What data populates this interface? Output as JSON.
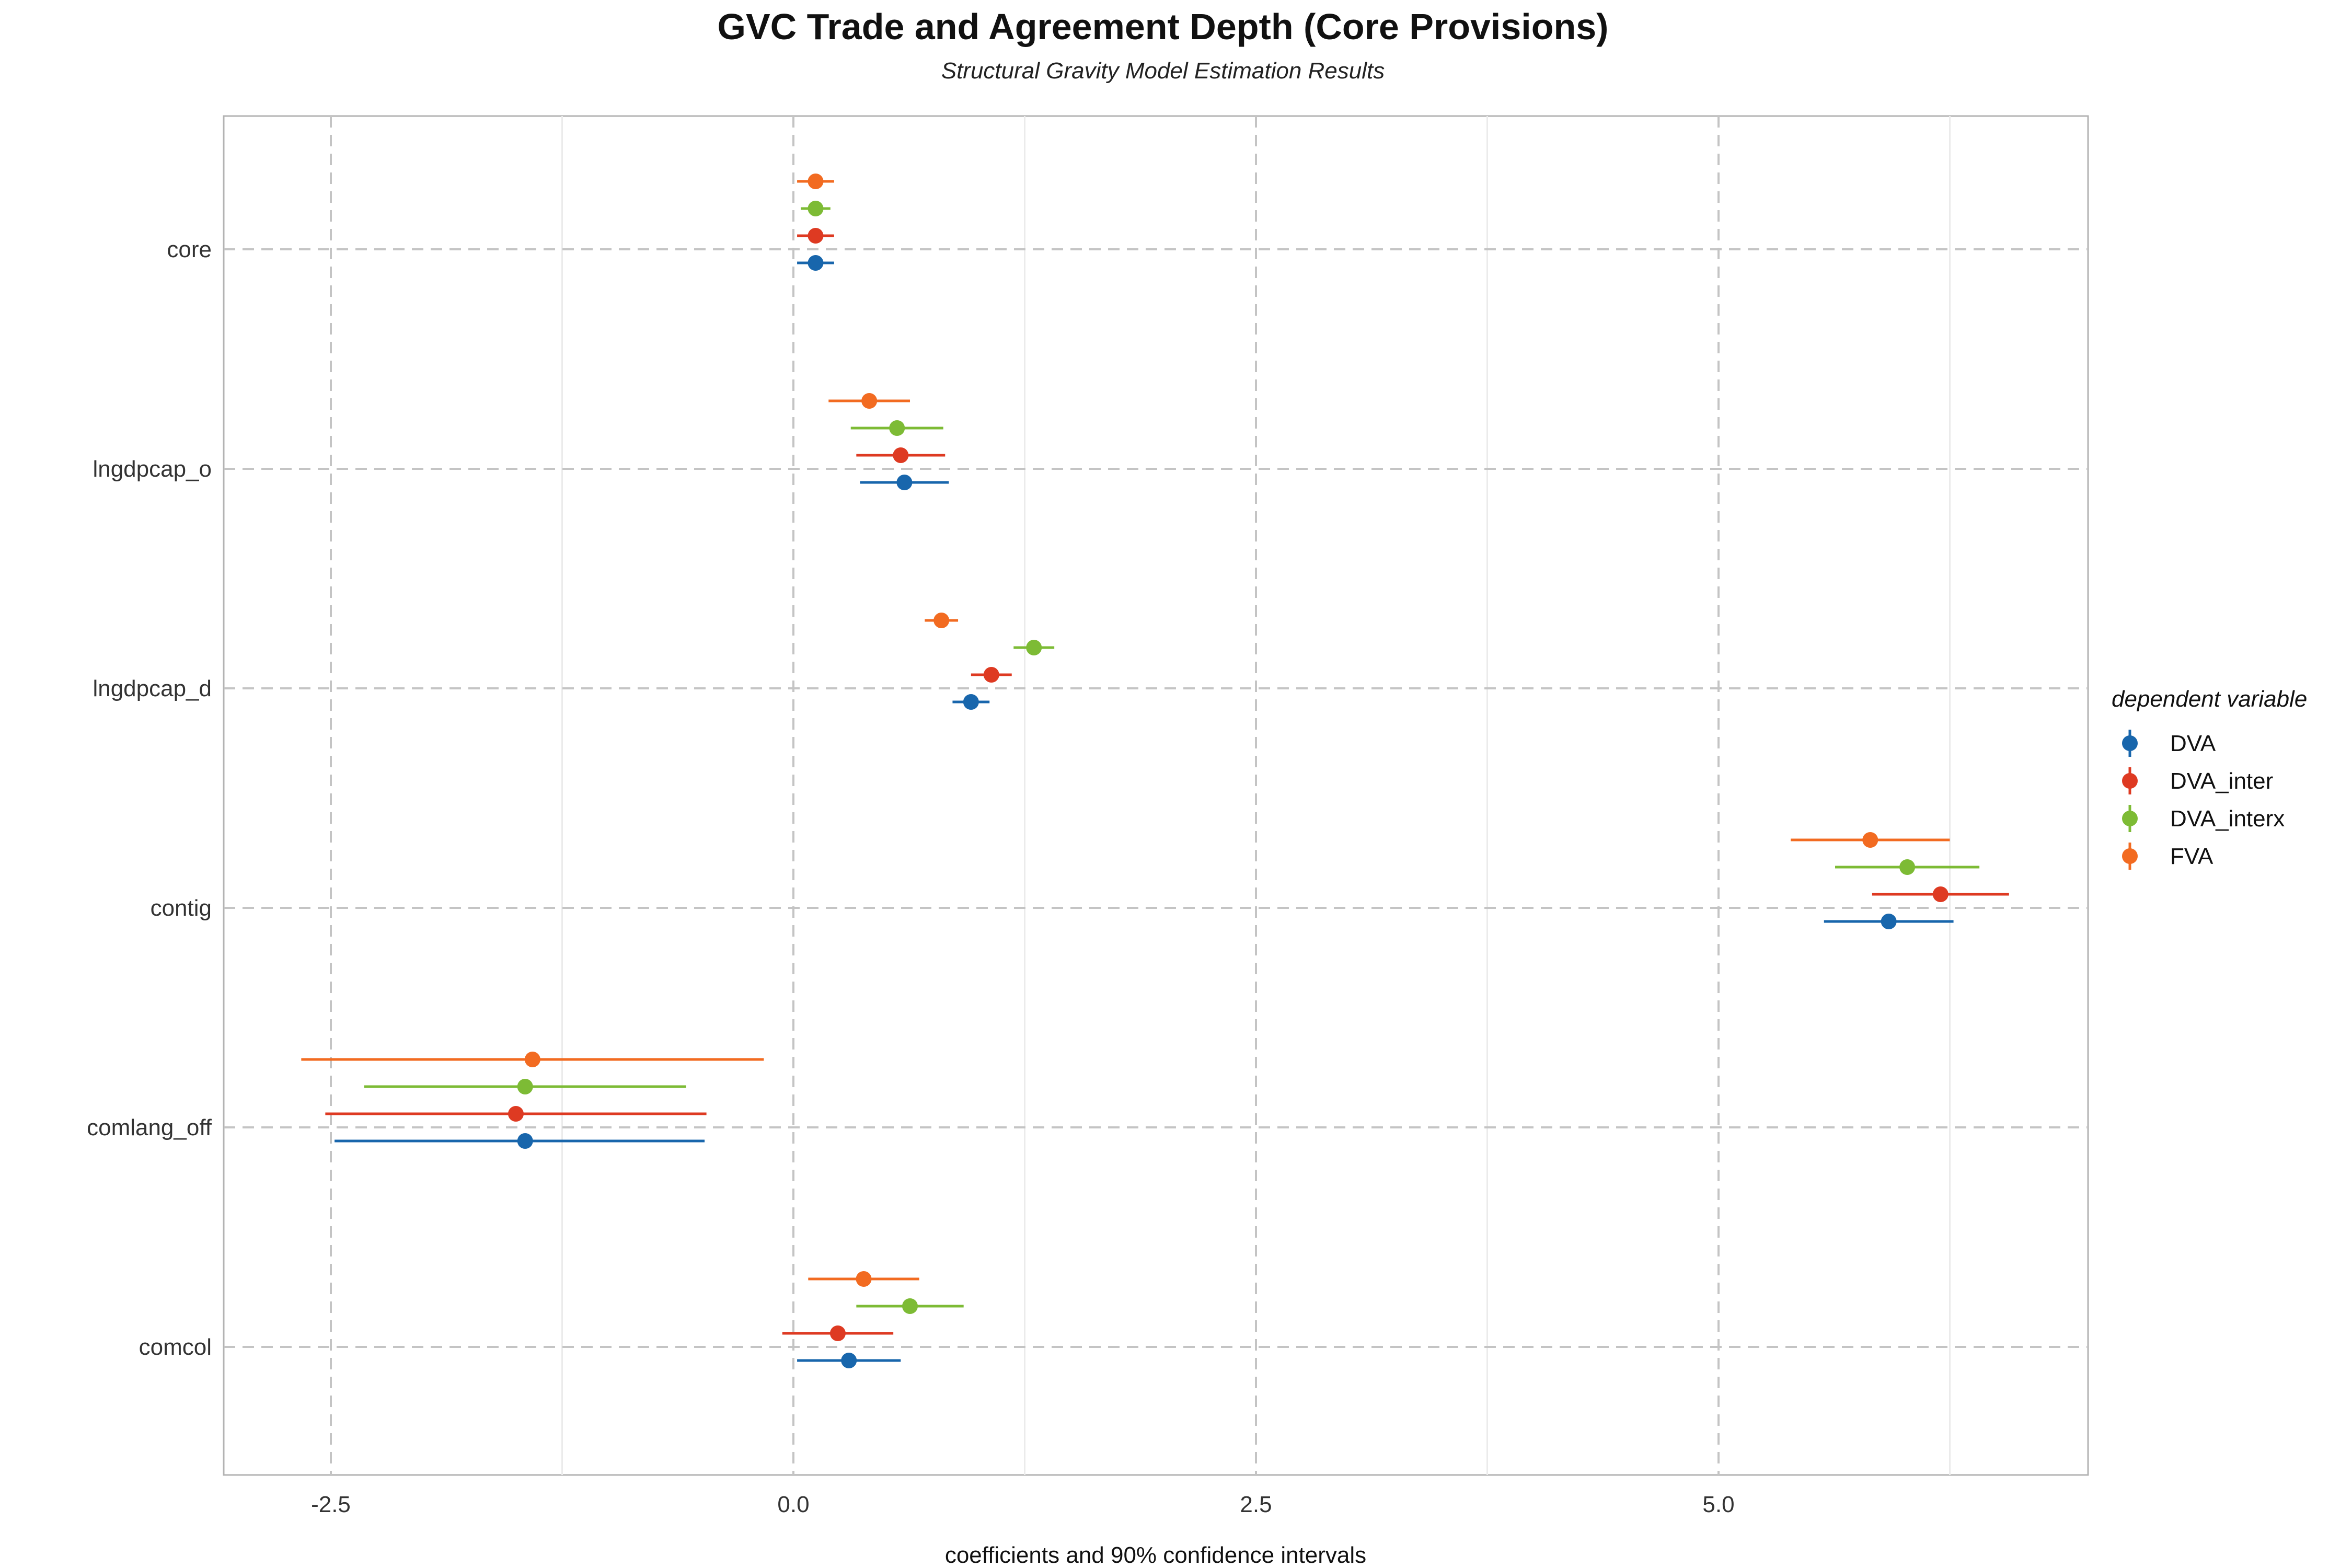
{
  "chart_data": {
    "type": "scatter",
    "title": "GVC Trade and Agreement Depth (Core Provisions)",
    "subtitle": "Structural Gravity Model Estimation Results",
    "xlabel": "coefficients and 90% confidence intervals",
    "xlim": [
      -3.1,
      7.0
    ],
    "xticks": [
      -2.5,
      0.0,
      2.5,
      5.0
    ],
    "xtick_labels": [
      "-2.5",
      "0.0",
      "2.5",
      "5.0"
    ],
    "categories": [
      "core",
      "lngdpcap_o",
      "lngdpcap_d",
      "contig",
      "comlang_off",
      "comcol"
    ],
    "legend": {
      "title": "dependent variable",
      "position": "right"
    },
    "series": [
      {
        "name": "DVA",
        "color": "#1866ac",
        "estimate": [
          0.12,
          0.6,
          0.96,
          5.92,
          -1.45,
          0.3
        ],
        "lower": [
          0.02,
          0.36,
          0.86,
          5.57,
          -2.48,
          0.02
        ],
        "upper": [
          0.22,
          0.84,
          1.06,
          6.27,
          -0.48,
          0.58
        ]
      },
      {
        "name": "DVA_inter",
        "color": "#de3a22",
        "estimate": [
          0.12,
          0.58,
          1.07,
          6.2,
          -1.5,
          0.24
        ],
        "lower": [
          0.02,
          0.34,
          0.96,
          5.83,
          -2.53,
          -0.06
        ],
        "upper": [
          0.22,
          0.82,
          1.18,
          6.57,
          -0.47,
          0.54
        ]
      },
      {
        "name": "DVA_interx",
        "color": "#7dbb35",
        "estimate": [
          0.12,
          0.56,
          1.3,
          6.02,
          -1.45,
          0.63
        ],
        "lower": [
          0.04,
          0.31,
          1.19,
          5.63,
          -2.32,
          0.34
        ],
        "upper": [
          0.2,
          0.81,
          1.41,
          6.41,
          -0.58,
          0.92
        ]
      },
      {
        "name": "FVA",
        "color": "#f26b21",
        "estimate": [
          0.12,
          0.41,
          0.8,
          5.82,
          -1.41,
          0.38
        ],
        "lower": [
          0.02,
          0.19,
          0.71,
          5.39,
          -2.66,
          0.08
        ],
        "upper": [
          0.22,
          0.63,
          0.89,
          6.25,
          -0.16,
          0.68
        ]
      }
    ]
  }
}
